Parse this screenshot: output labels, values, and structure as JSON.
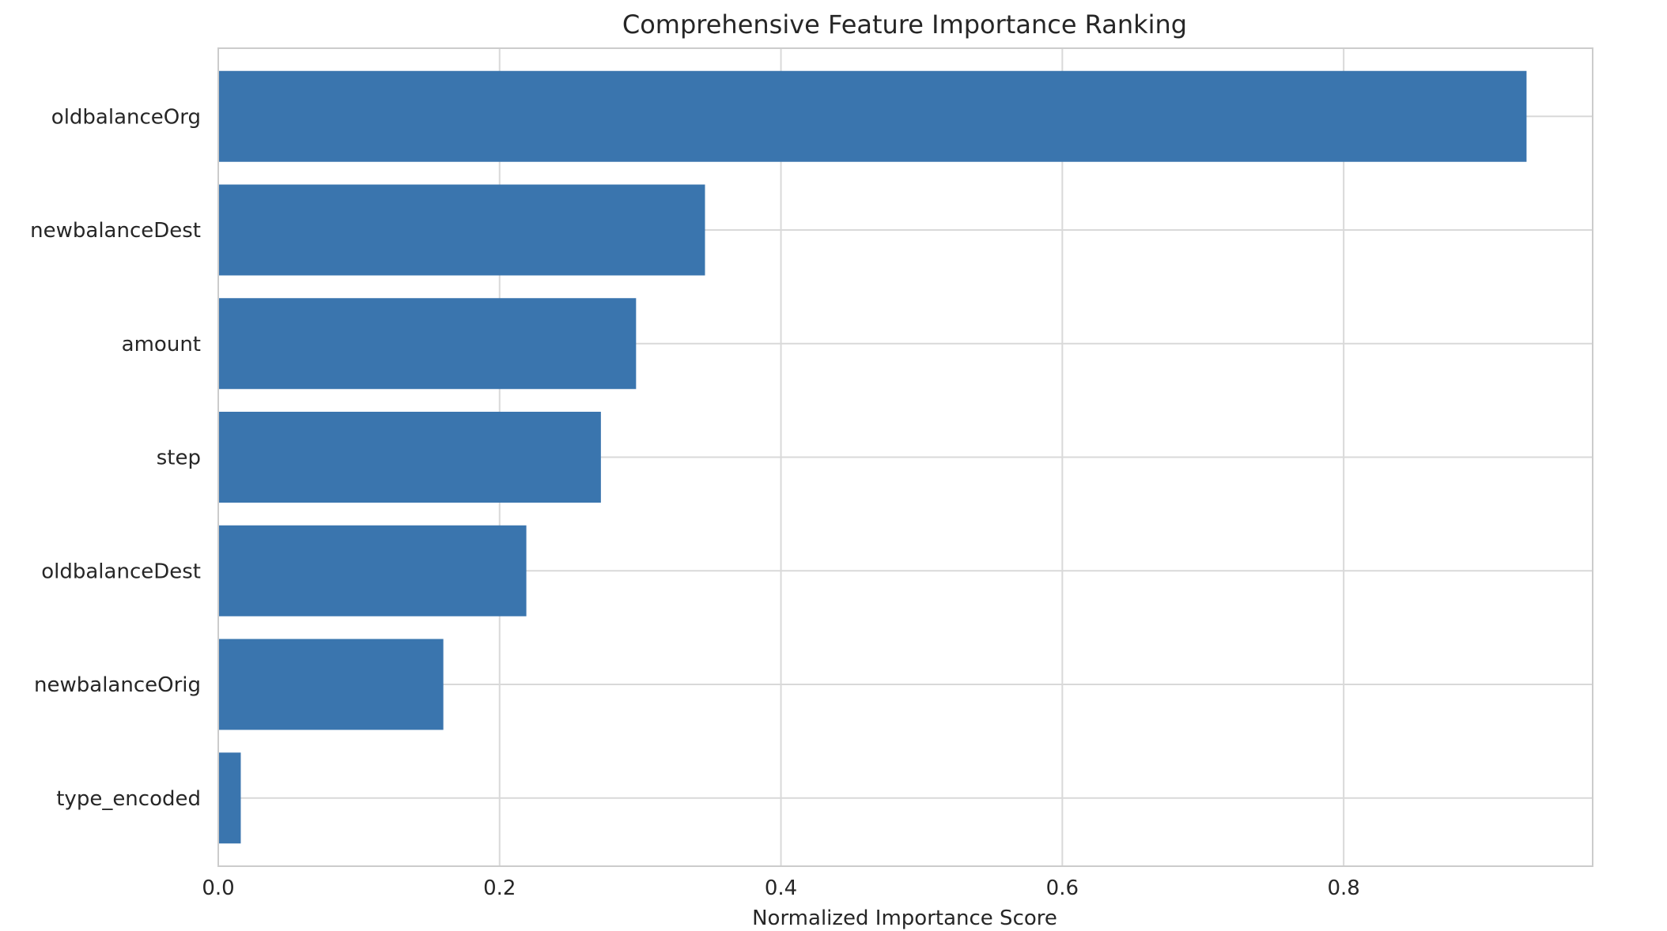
{
  "chart_data": {
    "type": "bar",
    "orientation": "horizontal",
    "title": "Comprehensive Feature Importance Ranking",
    "xlabel": "Normalized Importance Score",
    "ylabel": "",
    "categories": [
      "oldbalanceOrg",
      "newbalanceDest",
      "amount",
      "step",
      "oldbalanceDest",
      "newbalanceOrig",
      "type_encoded"
    ],
    "values": [
      0.93,
      0.346,
      0.297,
      0.272,
      0.219,
      0.16,
      0.016
    ],
    "xlim": [
      0,
      0.977
    ],
    "xticks": [
      0.0,
      0.2,
      0.4,
      0.6,
      0.8
    ],
    "xtick_labels": [
      "0.0",
      "0.2",
      "0.4",
      "0.6",
      "0.8"
    ],
    "grid": true,
    "bar_color": "#3a75ae",
    "grid_color": "#d9d9d9",
    "frame_color": "#cccccc"
  }
}
